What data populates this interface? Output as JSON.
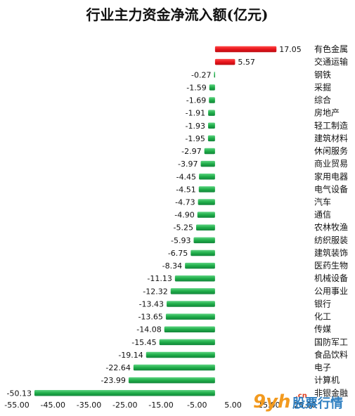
{
  "chart_data": {
    "type": "bar",
    "orientation": "horizontal",
    "title": "行业主力资金净流入额(亿元)",
    "categories": [
      "有色金属",
      "交通运输",
      "钢铁",
      "采掘",
      "综合",
      "房地产",
      "轻工制造",
      "建筑材料",
      "休闲服务",
      "商业贸易",
      "家用电器",
      "电气设备",
      "汽车",
      "通信",
      "农林牧渔",
      "纺织服装",
      "建筑装饰",
      "医药生物",
      "机械设备",
      "公用事业",
      "银行",
      "化工",
      "传媒",
      "国防军工",
      "食品饮料",
      "电子",
      "计算机",
      "非银金融"
    ],
    "values": [
      17.05,
      5.57,
      -0.27,
      -1.59,
      -1.69,
      -1.91,
      -1.93,
      -1.95,
      -2.97,
      -3.97,
      -4.45,
      -4.51,
      -4.73,
      -4.9,
      -5.25,
      -5.93,
      -6.75,
      -8.34,
      -11.13,
      -12.32,
      -13.43,
      -13.65,
      -14.08,
      -15.45,
      -19.14,
      -22.64,
      -23.99,
      -50.13
    ],
    "value_labels": [
      "17.05",
      "5.57",
      "-0.27",
      "-1.59",
      "-1.69",
      "-1.91",
      "-1.93",
      "-1.95",
      "-2.97",
      "-3.97",
      "-4.45",
      "-4.51",
      "-4.73",
      "-4.90",
      "-5.25",
      "-5.93",
      "-6.75",
      "-8.34",
      "-11.13",
      "-12.32",
      "-13.43",
      "-13.65",
      "-14.08",
      "-15.45",
      "-19.14",
      "-22.64",
      "-23.99",
      "-50.13"
    ],
    "xlim": [
      -55,
      25
    ],
    "ticks": [
      -55,
      -45,
      -35,
      -25,
      -15,
      -5,
      5,
      15,
      25
    ],
    "tick_labels": [
      "-55.00",
      "-45.00",
      "-35.00",
      "-25.00",
      "-15.00",
      "-5.00",
      "5.00",
      "15.00",
      "25.00"
    ],
    "grid": false,
    "colors": {
      "positive": "#e8141b",
      "negative": "#22b04b"
    }
  },
  "watermark": {
    "logo": "9yh",
    "dot_cn": ".cn",
    "text": "股票行情"
  }
}
